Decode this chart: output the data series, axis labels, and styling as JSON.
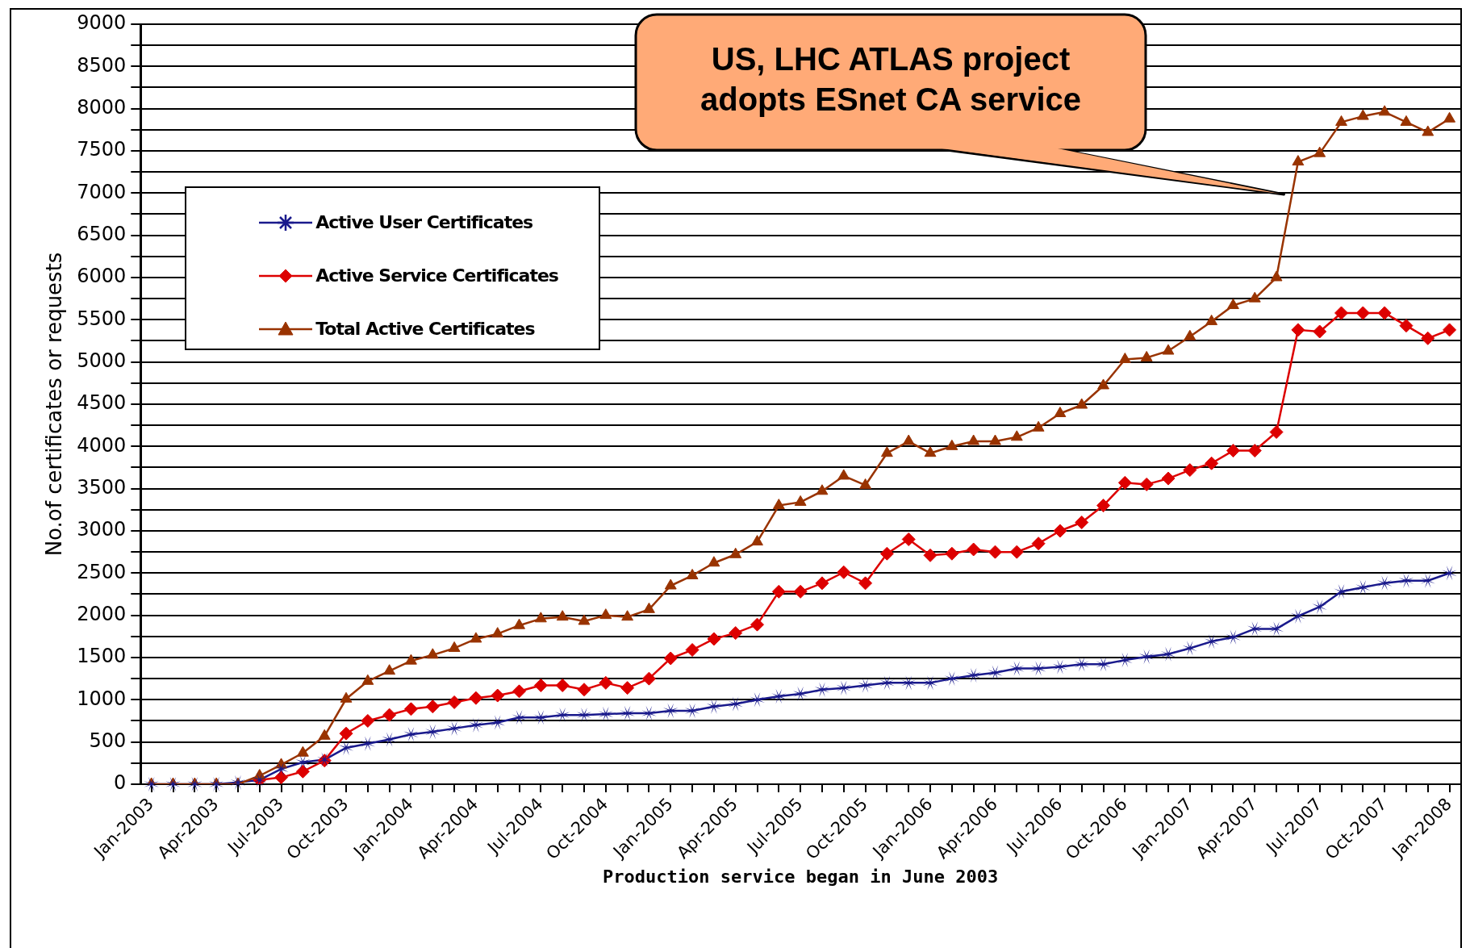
{
  "chart_data": {
    "type": "line",
    "xlabel": "Production service began in June 2003",
    "ylabel": "No.of certificates or requests",
    "categories": [
      "Jan-2003",
      null,
      null,
      "Apr-2003",
      null,
      null,
      "Jul-2003",
      null,
      null,
      "Oct-2003",
      null,
      null,
      "Jan-2004",
      null,
      null,
      "Apr-2004",
      null,
      null,
      "Jul-2004",
      null,
      null,
      "Oct-2004",
      null,
      null,
      "Jan-2005",
      null,
      null,
      "Apr-2005",
      null,
      null,
      "Jul-2005",
      null,
      null,
      "Oct-2005",
      null,
      null,
      "Jan-2006",
      null,
      null,
      "Apr-2006",
      null,
      null,
      "Jul-2006",
      null,
      null,
      "Oct-2006",
      null,
      null,
      "Jan-2007",
      null,
      null,
      "Apr-2007",
      null,
      null,
      "Jul-2007",
      null,
      null,
      "Oct-2007",
      null,
      null,
      "Jan-2008"
    ],
    "series": [
      {
        "name": "Active User Certificates",
        "color": "#1a1a8c",
        "marker": "star",
        "values": [
          0,
          0,
          0,
          0,
          20,
          50,
          180,
          260,
          290,
          430,
          480,
          530,
          590,
          620,
          660,
          700,
          730,
          790,
          790,
          820,
          820,
          830,
          840,
          840,
          870,
          870,
          920,
          950,
          1000,
          1040,
          1070,
          1120,
          1140,
          1170,
          1200,
          1200,
          1200,
          1250,
          1290,
          1320,
          1370,
          1370,
          1390,
          1420,
          1420,
          1470,
          1510,
          1540,
          1610,
          1690,
          1740,
          1840,
          1840,
          1990,
          2100,
          2280,
          2330,
          2380,
          2410,
          2410,
          2500
        ]
      },
      {
        "name": "Active Service Certificates",
        "color": "#dd0000",
        "marker": "diamond",
        "values": [
          null,
          null,
          null,
          null,
          null,
          50,
          80,
          150,
          280,
          600,
          750,
          820,
          890,
          920,
          970,
          1020,
          1050,
          1100,
          1170,
          1170,
          1120,
          1200,
          1140,
          1250,
          1490,
          1590,
          1720,
          1790,
          1890,
          2280,
          2280,
          2380,
          2510,
          2380,
          2730,
          2900,
          2710,
          2730,
          2780,
          2750,
          2750,
          2850,
          3000,
          3100,
          3300,
          3570,
          3550,
          3620,
          3720,
          3800,
          3950,
          3950,
          4170,
          5380,
          5360,
          5580,
          5580,
          5580,
          5430,
          5280,
          5380
        ]
      },
      {
        "name": "Total Active Certificates",
        "color": "#993300",
        "marker": "triangle",
        "values": [
          0,
          0,
          0,
          0,
          0,
          100,
          230,
          370,
          570,
          1010,
          1220,
          1340,
          1460,
          1530,
          1610,
          1720,
          1780,
          1880,
          1960,
          1980,
          1930,
          2000,
          1980,
          2070,
          2350,
          2470,
          2620,
          2720,
          2870,
          3300,
          3340,
          3470,
          3650,
          3540,
          3920,
          4060,
          3920,
          4000,
          4060,
          4060,
          4110,
          4220,
          4390,
          4490,
          4720,
          5030,
          5050,
          5130,
          5300,
          5480,
          5670,
          5750,
          6000,
          7370,
          7470,
          7840,
          7910,
          7960,
          7840,
          7720,
          7880
        ]
      }
    ],
    "ylim": [
      0,
      9000
    ],
    "yticks": [
      0,
      {
        "value": 250,
        "label": null
      },
      500,
      {
        "value": 750,
        "label": null
      },
      1000,
      {
        "value": 1250,
        "label": null
      },
      1500,
      {
        "value": 1750,
        "label": null
      },
      2000,
      {
        "value": 2250,
        "label": null
      },
      2500,
      {
        "value": 2750,
        "label": null
      },
      3000,
      {
        "value": 3250,
        "label": null
      },
      3500,
      {
        "value": 3750,
        "label": null
      },
      4000,
      {
        "value": 4250,
        "label": null
      },
      4500,
      {
        "value": 4750,
        "label": null
      },
      5000,
      {
        "value": 5250,
        "label": null
      },
      5500,
      {
        "value": 5750,
        "label": null
      },
      6000,
      {
        "value": 6250,
        "label": null
      },
      6500,
      {
        "value": 6750,
        "label": null
      },
      7000,
      {
        "value": 7250,
        "label": null
      },
      7500,
      {
        "value": 7750,
        "label": null
      },
      8000,
      {
        "value": 8250,
        "label": null
      },
      8500,
      {
        "value": 8750,
        "label": null
      },
      9000
    ],
    "grid": "y",
    "legend": "left",
    "annotations": [
      "US, LHC ATLAS project adopts ESnet CA service"
    ]
  }
}
